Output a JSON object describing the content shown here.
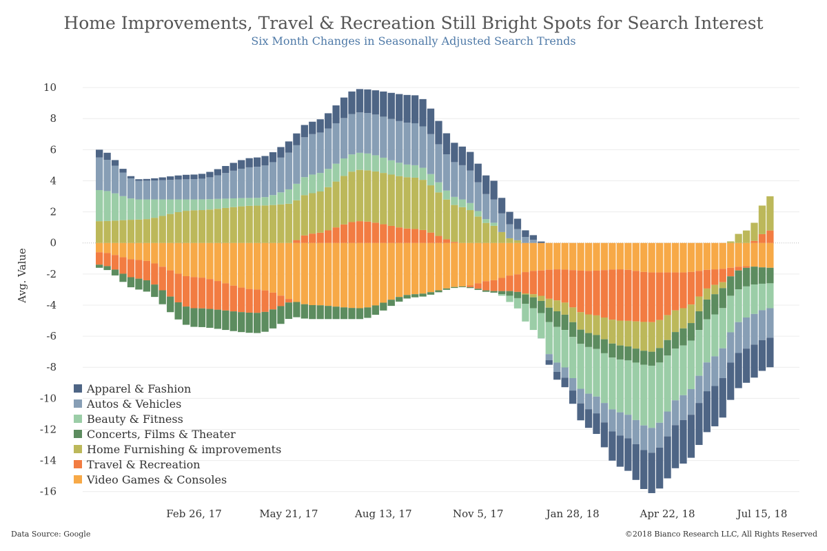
{
  "chart_data": {
    "type": "bar",
    "stacked": true,
    "diverging": true,
    "title": "Home Improvements, Travel & Recreation Still Bright Spots for Search Interest",
    "subtitle": "Six Month Changes in Seasonally Adjusted Search Trends",
    "xlabel": "",
    "ylabel": "Avg. Value",
    "ylim": [
      -16.5,
      11.2
    ],
    "yticks": [
      10,
      8,
      6,
      4,
      2,
      0,
      -2,
      -4,
      -6,
      -8,
      -10,
      -12,
      -14,
      -16
    ],
    "x_start": "2016-12-04",
    "x_step_days": 7,
    "x_count": 86,
    "x_tick_labels": [
      {
        "label": "Feb 26, 17",
        "date": "2017-02-26"
      },
      {
        "label": "May 21, 17",
        "date": "2017-05-21"
      },
      {
        "label": "Aug 13, 17",
        "date": "2017-08-13"
      },
      {
        "label": "Nov 5, 17",
        "date": "2017-11-05"
      },
      {
        "label": "Jan 28, 18",
        "date": "2018-01-28"
      },
      {
        "label": "Apr 22, 18",
        "date": "2018-04-22"
      },
      {
        "label": "Jul 15, 18",
        "date": "2018-07-15"
      }
    ],
    "grid": true,
    "legend_position": "bottom-left",
    "series_order_bottom_to_top": [
      "Video Games & Consoles",
      "Travel & Recreation",
      "Home Furnishing & improvements",
      "Concerts, Films & Theater",
      "Beauty & Fitness",
      "Autos & Vehicles",
      "Apparel & Fashion"
    ],
    "series": [
      {
        "name": "Apparel & Fashion",
        "color": "#4e6585",
        "anchors": [
          [
            0,
            0.5
          ],
          [
            5,
            0.1
          ],
          [
            12,
            0.3
          ],
          [
            20,
            0.6
          ],
          [
            27,
            0.8
          ],
          [
            33,
            1.5
          ],
          [
            40,
            1.8
          ],
          [
            46,
            1.2
          ],
          [
            50,
            1.2
          ],
          [
            52,
            0.8
          ],
          [
            55,
            0.3
          ],
          [
            58,
            -0.5
          ],
          [
            62,
            -1.2
          ],
          [
            66,
            -2.0
          ],
          [
            70,
            -2.6
          ],
          [
            74,
            -2.8
          ],
          [
            78,
            -2.6
          ],
          [
            82,
            -2.2
          ],
          [
            85,
            -1.9
          ]
        ]
      },
      {
        "name": "Autos & Vehicles",
        "color": "#879eb5",
        "anchors": [
          [
            0,
            2.1
          ],
          [
            5,
            1.2
          ],
          [
            12,
            1.3
          ],
          [
            20,
            2.0
          ],
          [
            27,
            2.6
          ],
          [
            33,
            2.6
          ],
          [
            40,
            2.7
          ],
          [
            46,
            2.2
          ],
          [
            50,
            1.5
          ],
          [
            52,
            0.9
          ],
          [
            55,
            0.2
          ],
          [
            58,
            -0.6
          ],
          [
            62,
            -1.0
          ],
          [
            66,
            -1.5
          ],
          [
            70,
            -1.6
          ],
          [
            74,
            -1.6
          ],
          [
            78,
            -1.9
          ],
          [
            82,
            -2.0
          ],
          [
            85,
            -1.9
          ]
        ]
      },
      {
        "name": "Beauty & Fitness",
        "color": "#9bcda7",
        "anchors": [
          [
            0,
            2.0
          ],
          [
            5,
            1.3
          ],
          [
            12,
            0.7
          ],
          [
            20,
            0.5
          ],
          [
            27,
            1.2
          ],
          [
            33,
            1.1
          ],
          [
            40,
            0.8
          ],
          [
            46,
            0.5
          ],
          [
            50,
            0.2
          ],
          [
            52,
            -0.4
          ],
          [
            55,
            -1.4
          ],
          [
            58,
            -2.3
          ],
          [
            62,
            -3.0
          ],
          [
            66,
            -3.4
          ],
          [
            70,
            -4.0
          ],
          [
            74,
            -3.2
          ],
          [
            78,
            -2.7
          ],
          [
            82,
            -2.0
          ],
          [
            85,
            -1.6
          ]
        ]
      },
      {
        "name": "Concerts, Films & Theater",
        "color": "#5c8c5f",
        "anchors": [
          [
            0,
            -0.2
          ],
          [
            5,
            -0.7
          ],
          [
            12,
            -1.2
          ],
          [
            20,
            -1.3
          ],
          [
            27,
            -0.9
          ],
          [
            33,
            -0.7
          ],
          [
            40,
            -0.2
          ],
          [
            46,
            -0.05
          ],
          [
            50,
            -0.1
          ],
          [
            52,
            -0.3
          ],
          [
            55,
            -0.7
          ],
          [
            58,
            -1.0
          ],
          [
            62,
            -0.9
          ],
          [
            66,
            -0.9
          ],
          [
            70,
            -0.9
          ],
          [
            74,
            -1.1
          ],
          [
            78,
            -1.3
          ],
          [
            82,
            -1.2
          ],
          [
            85,
            -1.0
          ]
        ]
      },
      {
        "name": "Home Furnishing & improvements",
        "color": "#bcb85a",
        "anchors": [
          [
            0,
            1.4
          ],
          [
            5,
            1.5
          ],
          [
            12,
            2.1
          ],
          [
            20,
            2.4
          ],
          [
            27,
            2.6
          ],
          [
            33,
            3.3
          ],
          [
            40,
            3.3
          ],
          [
            46,
            2.3
          ],
          [
            50,
            1.1
          ],
          [
            52,
            0.3
          ],
          [
            55,
            -0.2
          ],
          [
            58,
            -0.7
          ],
          [
            62,
            -1.2
          ],
          [
            66,
            -1.6
          ],
          [
            70,
            -1.9
          ],
          [
            74,
            -1.3
          ],
          [
            78,
            -0.6
          ],
          [
            82,
            0.8
          ],
          [
            85,
            2.2
          ]
        ]
      },
      {
        "name": "Travel & Recreation",
        "color": "#f27c42",
        "anchors": [
          [
            0,
            -0.8
          ],
          [
            5,
            -1.2
          ],
          [
            12,
            -2.0
          ],
          [
            20,
            -1.5
          ],
          [
            27,
            0.6
          ],
          [
            33,
            1.4
          ],
          [
            40,
            0.9
          ],
          [
            46,
            0.0
          ],
          [
            50,
            -0.7
          ],
          [
            52,
            -1.0
          ],
          [
            55,
            -1.5
          ],
          [
            58,
            -2.0
          ],
          [
            62,
            -2.8
          ],
          [
            66,
            -3.3
          ],
          [
            70,
            -3.2
          ],
          [
            74,
            -2.3
          ],
          [
            78,
            -1.0
          ],
          [
            82,
            -0.1
          ],
          [
            85,
            0.8
          ]
        ]
      },
      {
        "name": "Video Games & Consoles",
        "color": "#f7a947",
        "anchors": [
          [
            0,
            -0.6
          ],
          [
            5,
            -1.1
          ],
          [
            12,
            -2.2
          ],
          [
            20,
            -3.0
          ],
          [
            27,
            -4.0
          ],
          [
            33,
            -4.2
          ],
          [
            40,
            -3.3
          ],
          [
            46,
            -2.8
          ],
          [
            50,
            -2.4
          ],
          [
            52,
            -2.1
          ],
          [
            55,
            -1.8
          ],
          [
            58,
            -1.7
          ],
          [
            62,
            -1.8
          ],
          [
            66,
            -1.7
          ],
          [
            70,
            -1.9
          ],
          [
            74,
            -1.9
          ],
          [
            78,
            -1.7
          ],
          [
            82,
            -1.5
          ],
          [
            85,
            -1.6
          ]
        ]
      }
    ]
  },
  "footer": {
    "source": "Data Source: Google",
    "copyright": "©2018 Bianco Research LLC, All Rights Reserved"
  }
}
